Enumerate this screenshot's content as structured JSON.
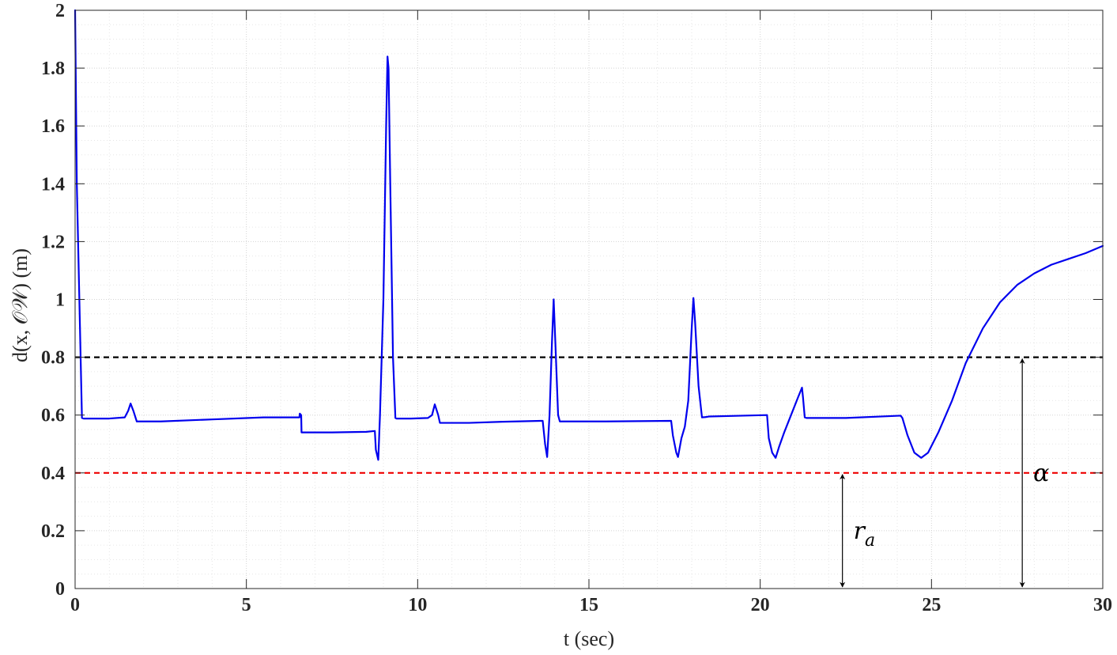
{
  "chart_data": {
    "type": "line",
    "xlabel": "t  (sec)",
    "ylabel": "d(x, 𝒪𝒲)  (m)",
    "xlim": [
      0,
      30
    ],
    "ylim": [
      0,
      2
    ],
    "xticks": [
      0,
      5,
      10,
      15,
      20,
      25,
      30
    ],
    "yticks": [
      0,
      0.2,
      0.4,
      0.6,
      0.8,
      1,
      1.2,
      1.4,
      1.6,
      1.8,
      2
    ],
    "xtick_labels": [
      "0",
      "5",
      "10",
      "15",
      "20",
      "25",
      "30"
    ],
    "ytick_labels": [
      "0",
      "0.2",
      "0.4",
      "0.6",
      "0.8",
      "1",
      "1.2",
      "1.4",
      "1.6",
      "1.8",
      "2"
    ],
    "grid": true,
    "minor_grid": true,
    "series": [
      {
        "color": "#0000ee",
        "style": "solid",
        "x": [
          0,
          0.05,
          0.2,
          0.25,
          1.0,
          1.45,
          1.55,
          1.62,
          1.7,
          1.8,
          2.5,
          4.0,
          5.5,
          6.55,
          6.56,
          6.6,
          6.61,
          7.5,
          8.5,
          8.75,
          8.78,
          8.85,
          8.9,
          9.0,
          9.08,
          9.12,
          9.15,
          9.2,
          9.28,
          9.35,
          9.38,
          9.45,
          9.8,
          10.3,
          10.42,
          10.5,
          10.6,
          10.65,
          11.5,
          12.5,
          13.6,
          13.65,
          13.72,
          13.78,
          13.85,
          13.92,
          13.97,
          14.02,
          14.1,
          14.15,
          14.2,
          15.5,
          17.4,
          17.45,
          17.55,
          17.6,
          17.7,
          17.8,
          17.9,
          18.0,
          18.05,
          18.1,
          18.2,
          18.3,
          18.4,
          18.5,
          19.5,
          20.2,
          20.25,
          20.35,
          20.45,
          20.55,
          20.7,
          20.9,
          21.1,
          21.22,
          21.25,
          21.3,
          21.35,
          22.5,
          24.1,
          24.15,
          24.3,
          24.5,
          24.7,
          24.9,
          25.2,
          25.6,
          26.0,
          26.5,
          27.0,
          27.5,
          28.0,
          28.5,
          29.0,
          29.5,
          30.0
        ],
        "y": [
          2.0,
          1.4,
          0.59,
          0.588,
          0.588,
          0.592,
          0.615,
          0.64,
          0.615,
          0.578,
          0.578,
          0.585,
          0.592,
          0.592,
          0.605,
          0.6,
          0.54,
          0.54,
          0.542,
          0.545,
          0.48,
          0.445,
          0.6,
          1.0,
          1.6,
          1.84,
          1.8,
          1.4,
          0.8,
          0.59,
          0.588,
          0.588,
          0.588,
          0.59,
          0.6,
          0.637,
          0.6,
          0.573,
          0.573,
          0.577,
          0.58,
          0.58,
          0.5,
          0.455,
          0.6,
          0.85,
          1.0,
          0.85,
          0.6,
          0.578,
          0.578,
          0.578,
          0.58,
          0.53,
          0.47,
          0.455,
          0.52,
          0.56,
          0.65,
          0.9,
          1.005,
          0.92,
          0.7,
          0.592,
          0.593,
          0.595,
          0.598,
          0.6,
          0.52,
          0.47,
          0.452,
          0.49,
          0.54,
          0.6,
          0.66,
          0.695,
          0.66,
          0.592,
          0.59,
          0.59,
          0.598,
          0.59,
          0.53,
          0.47,
          0.452,
          0.47,
          0.54,
          0.65,
          0.78,
          0.9,
          0.99,
          1.05,
          1.09,
          1.12,
          1.14,
          1.16,
          1.185
        ]
      }
    ],
    "reference_lines": [
      {
        "y": 0.8,
        "color": "#000000",
        "style": "dashed"
      },
      {
        "y": 0.4,
        "color": "#ee0000",
        "style": "dashed"
      }
    ],
    "annotations": [
      {
        "text": "r",
        "subscript": "a",
        "x": 22.4,
        "y_from": 0,
        "y_to": 0.4,
        "arrow": "double"
      },
      {
        "text": "α",
        "x": 27.65,
        "y_from": 0,
        "y_to": 0.8,
        "arrow": "double"
      }
    ]
  }
}
